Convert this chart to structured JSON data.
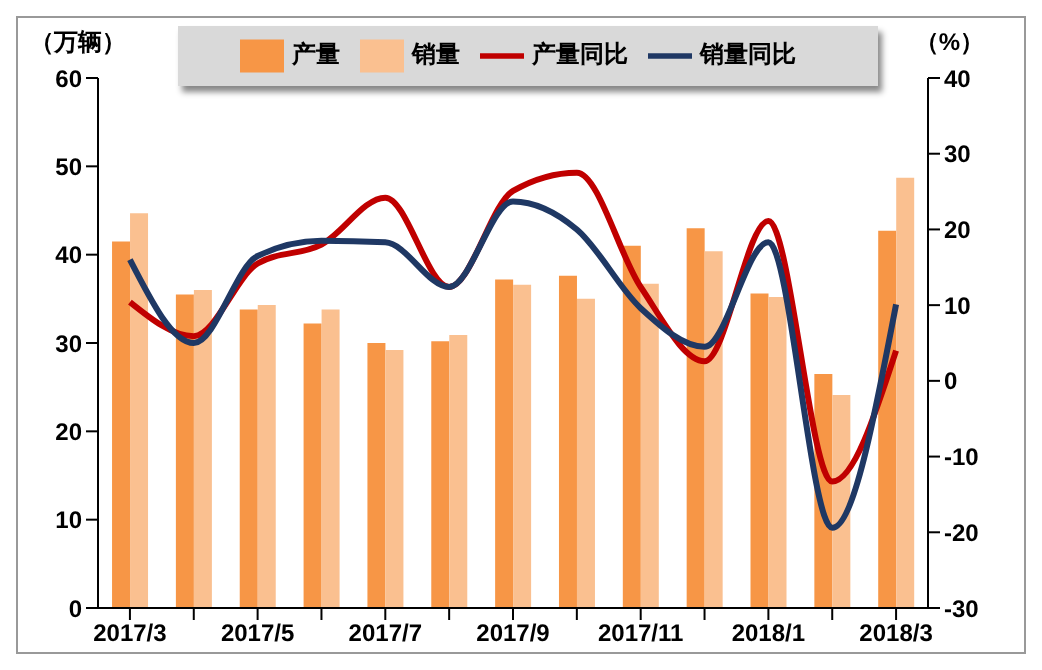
{
  "chart_data": {
    "type": "bar",
    "ylabel": "（万辆）",
    "y2label": "（%）",
    "categories": [
      "2017/3",
      null,
      "2017/5",
      null,
      "2017/7",
      null,
      "2017/9",
      null,
      "2017/11",
      null,
      "2018/1",
      null,
      "2018/3"
    ],
    "series": [
      {
        "name": "产量",
        "color": "#f79646",
        "values": [
          41.5,
          35.5,
          33.8,
          32.2,
          30,
          30.2,
          37.2,
          37.6,
          41,
          43,
          35.6,
          26.5,
          42.7
        ]
      },
      {
        "name": "销量",
        "color": "#fac090",
        "values": [
          44.7,
          36,
          34.3,
          33.8,
          29.2,
          30.9,
          36.6,
          35,
          36.7,
          40.4,
          35.2,
          24.1,
          48.7
        ]
      },
      {
        "name": "产量同比",
        "type": "line",
        "axis": "y2",
        "color": "#c00000",
        "values": [
          10.4,
          5.9,
          15.5,
          18,
          24.2,
          12.4,
          25.1,
          27.5,
          12.4,
          2.6,
          21.1,
          -13.3,
          4
        ]
      },
      {
        "name": "销量同比",
        "type": "line",
        "axis": "y2",
        "color": "#1f3864",
        "values": [
          16,
          5,
          16.5,
          18.5,
          18.3,
          12.4,
          23.7,
          20,
          9.6,
          4.5,
          18.3,
          -19.4,
          10.1
        ]
      }
    ],
    "ylim": [
      0,
      60
    ],
    "yticks": [
      0,
      10,
      20,
      30,
      40,
      50,
      60
    ],
    "y2lim": [
      -30,
      40
    ],
    "y2ticks": [
      -30,
      -20,
      -10,
      0,
      10,
      20,
      30,
      40
    ],
    "grid": false,
    "legend": "top",
    "marker": "none",
    "line_style": "solid"
  }
}
